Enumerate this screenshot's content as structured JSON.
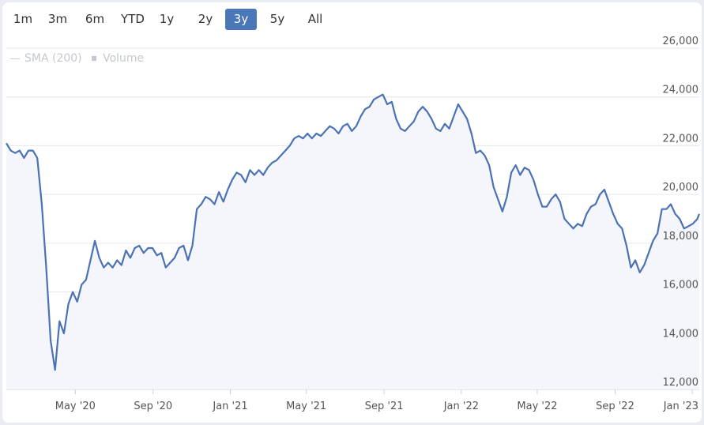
{
  "range_selector": {
    "buttons": [
      "1m",
      "3m",
      "6m",
      "YTD",
      "1y",
      "2y",
      "3y",
      "5y",
      "All"
    ],
    "selected": "3y"
  },
  "legend": {
    "items": [
      {
        "label": "SMA (200)",
        "symbol": "line"
      },
      {
        "label": "Volume",
        "symbol": "square"
      }
    ]
  },
  "colors": {
    "line": "#4a72b4",
    "fill": "#f4f6fb",
    "grid": "#e3e6ec",
    "selected_button": "#4a77b8"
  },
  "chart_data": {
    "type": "area",
    "title": "",
    "xlabel": "",
    "ylabel": "",
    "ylim": [
      12000,
      26000
    ],
    "xlim": [
      "2020-01-13",
      "2023-01-12"
    ],
    "y_ticks": [
      12000,
      14000,
      16000,
      18000,
      20000,
      22000,
      24000,
      26000
    ],
    "y_tick_labels": [
      "12,000",
      "14,000",
      "16,000",
      "18,000",
      "20,000",
      "22,000",
      "24,000",
      "26,000"
    ],
    "x_ticks": [
      "2020-05-01",
      "2020-09-01",
      "2021-01-01",
      "2021-05-01",
      "2021-09-01",
      "2022-01-01",
      "2022-05-01",
      "2022-09-01",
      "2023-01-01"
    ],
    "x_tick_labels": [
      "May '20",
      "Sep '20",
      "Jan '21",
      "May '21",
      "Sep '21",
      "Jan '22",
      "May '22",
      "Sep '22",
      "Jan '23"
    ],
    "grid": "horizontal",
    "series": [
      {
        "values": [
          [
            "2020-01-13",
            22100
          ],
          [
            "2020-01-20",
            21800
          ],
          [
            "2020-01-27",
            21700
          ],
          [
            "2020-02-03",
            21800
          ],
          [
            "2020-02-10",
            21500
          ],
          [
            "2020-02-17",
            21800
          ],
          [
            "2020-02-24",
            21800
          ],
          [
            "2020-03-02",
            21500
          ],
          [
            "2020-03-09",
            19600
          ],
          [
            "2020-03-16",
            17000
          ],
          [
            "2020-03-23",
            14000
          ],
          [
            "2020-03-30",
            12800
          ],
          [
            "2020-04-06",
            14800
          ],
          [
            "2020-04-13",
            14300
          ],
          [
            "2020-04-20",
            15500
          ],
          [
            "2020-04-27",
            16000
          ],
          [
            "2020-05-04",
            15600
          ],
          [
            "2020-05-11",
            16300
          ],
          [
            "2020-05-18",
            16500
          ],
          [
            "2020-05-25",
            17300
          ],
          [
            "2020-06-01",
            18100
          ],
          [
            "2020-06-08",
            17400
          ],
          [
            "2020-06-15",
            17000
          ],
          [
            "2020-06-22",
            17200
          ],
          [
            "2020-06-29",
            17000
          ],
          [
            "2020-07-06",
            17300
          ],
          [
            "2020-07-13",
            17100
          ],
          [
            "2020-07-20",
            17700
          ],
          [
            "2020-07-27",
            17400
          ],
          [
            "2020-08-03",
            17800
          ],
          [
            "2020-08-10",
            17900
          ],
          [
            "2020-08-17",
            17600
          ],
          [
            "2020-08-24",
            17800
          ],
          [
            "2020-08-31",
            17800
          ],
          [
            "2020-09-07",
            17500
          ],
          [
            "2020-09-14",
            17600
          ],
          [
            "2020-09-21",
            17000
          ],
          [
            "2020-09-28",
            17200
          ],
          [
            "2020-10-05",
            17400
          ],
          [
            "2020-10-12",
            17800
          ],
          [
            "2020-10-19",
            17900
          ],
          [
            "2020-10-26",
            17300
          ],
          [
            "2020-11-02",
            17900
          ],
          [
            "2020-11-09",
            19400
          ],
          [
            "2020-11-16",
            19600
          ],
          [
            "2020-11-23",
            19900
          ],
          [
            "2020-11-30",
            19800
          ],
          [
            "2020-12-07",
            19600
          ],
          [
            "2020-12-14",
            20100
          ],
          [
            "2020-12-21",
            19700
          ],
          [
            "2020-12-28",
            20200
          ],
          [
            "2021-01-04",
            20600
          ],
          [
            "2021-01-11",
            20900
          ],
          [
            "2021-01-18",
            20800
          ],
          [
            "2021-01-25",
            20500
          ],
          [
            "2021-02-01",
            21000
          ],
          [
            "2021-02-08",
            20800
          ],
          [
            "2021-02-15",
            21000
          ],
          [
            "2021-02-22",
            20800
          ],
          [
            "2021-03-01",
            21100
          ],
          [
            "2021-03-08",
            21300
          ],
          [
            "2021-03-15",
            21400
          ],
          [
            "2021-03-22",
            21600
          ],
          [
            "2021-03-29",
            21800
          ],
          [
            "2021-04-05",
            22000
          ],
          [
            "2021-04-12",
            22300
          ],
          [
            "2021-04-19",
            22400
          ],
          [
            "2021-04-26",
            22300
          ],
          [
            "2021-05-03",
            22500
          ],
          [
            "2021-05-10",
            22300
          ],
          [
            "2021-05-17",
            22500
          ],
          [
            "2021-05-24",
            22400
          ],
          [
            "2021-05-31",
            22600
          ],
          [
            "2021-06-07",
            22800
          ],
          [
            "2021-06-14",
            22700
          ],
          [
            "2021-06-21",
            22500
          ],
          [
            "2021-06-28",
            22800
          ],
          [
            "2021-07-05",
            22900
          ],
          [
            "2021-07-12",
            22600
          ],
          [
            "2021-07-19",
            22800
          ],
          [
            "2021-07-26",
            23200
          ],
          [
            "2021-08-02",
            23500
          ],
          [
            "2021-08-09",
            23600
          ],
          [
            "2021-08-16",
            23900
          ],
          [
            "2021-08-23",
            24000
          ],
          [
            "2021-08-30",
            24100
          ],
          [
            "2021-09-06",
            23700
          ],
          [
            "2021-09-13",
            23800
          ],
          [
            "2021-09-20",
            23100
          ],
          [
            "2021-09-27",
            22700
          ],
          [
            "2021-10-04",
            22600
          ],
          [
            "2021-10-11",
            22800
          ],
          [
            "2021-10-18",
            23000
          ],
          [
            "2021-10-25",
            23400
          ],
          [
            "2021-11-01",
            23600
          ],
          [
            "2021-11-08",
            23400
          ],
          [
            "2021-11-15",
            23100
          ],
          [
            "2021-11-22",
            22700
          ],
          [
            "2021-11-29",
            22600
          ],
          [
            "2021-12-06",
            22900
          ],
          [
            "2021-12-13",
            22700
          ],
          [
            "2021-12-20",
            23200
          ],
          [
            "2021-12-27",
            23700
          ],
          [
            "2022-01-03",
            23400
          ],
          [
            "2022-01-10",
            23100
          ],
          [
            "2022-01-17",
            22500
          ],
          [
            "2022-01-24",
            21700
          ],
          [
            "2022-01-31",
            21800
          ],
          [
            "2022-02-07",
            21600
          ],
          [
            "2022-02-14",
            21200
          ],
          [
            "2022-02-21",
            20300
          ],
          [
            "2022-02-28",
            19800
          ],
          [
            "2022-03-07",
            19300
          ],
          [
            "2022-03-14",
            19900
          ],
          [
            "2022-03-21",
            20900
          ],
          [
            "2022-03-28",
            21200
          ],
          [
            "2022-04-04",
            20800
          ],
          [
            "2022-04-11",
            21100
          ],
          [
            "2022-04-18",
            21000
          ],
          [
            "2022-04-25",
            20600
          ],
          [
            "2022-05-02",
            20000
          ],
          [
            "2022-05-09",
            19500
          ],
          [
            "2022-05-16",
            19500
          ],
          [
            "2022-05-23",
            19800
          ],
          [
            "2022-05-30",
            20000
          ],
          [
            "2022-06-06",
            19700
          ],
          [
            "2022-06-13",
            19000
          ],
          [
            "2022-06-20",
            18800
          ],
          [
            "2022-06-27",
            18600
          ],
          [
            "2022-07-04",
            18800
          ],
          [
            "2022-07-11",
            18700
          ],
          [
            "2022-07-18",
            19200
          ],
          [
            "2022-07-25",
            19500
          ],
          [
            "2022-08-01",
            19600
          ],
          [
            "2022-08-08",
            20000
          ],
          [
            "2022-08-15",
            20200
          ],
          [
            "2022-08-22",
            19700
          ],
          [
            "2022-08-29",
            19200
          ],
          [
            "2022-09-05",
            18800
          ],
          [
            "2022-09-12",
            18600
          ],
          [
            "2022-09-19",
            17900
          ],
          [
            "2022-09-26",
            17000
          ],
          [
            "2022-10-03",
            17300
          ],
          [
            "2022-10-10",
            16800
          ],
          [
            "2022-10-17",
            17100
          ],
          [
            "2022-10-24",
            17600
          ],
          [
            "2022-10-31",
            18100
          ],
          [
            "2022-11-07",
            18400
          ],
          [
            "2022-11-14",
            19400
          ],
          [
            "2022-11-21",
            19400
          ],
          [
            "2022-11-28",
            19600
          ],
          [
            "2022-12-05",
            19200
          ],
          [
            "2022-12-12",
            19000
          ],
          [
            "2022-12-19",
            18600
          ],
          [
            "2022-12-26",
            18700
          ],
          [
            "2023-01-02",
            18800
          ],
          [
            "2023-01-09",
            19000
          ],
          [
            "2023-01-12",
            19200
          ]
        ]
      }
    ]
  }
}
